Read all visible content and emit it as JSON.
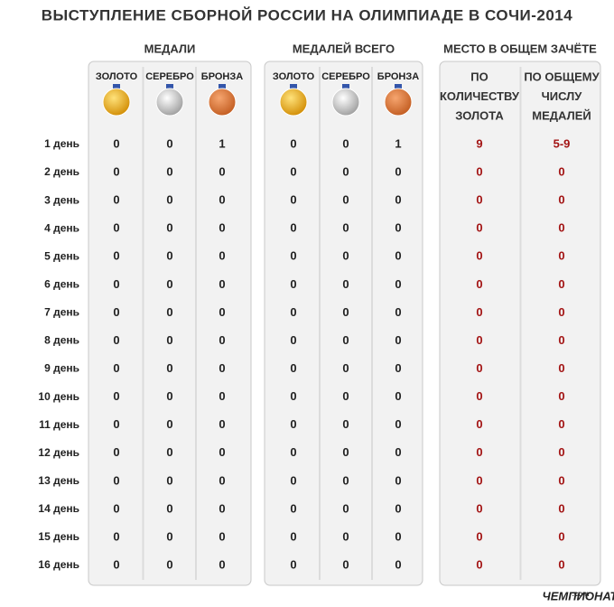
{
  "title": "ВЫСТУПЛЕНИЕ СБОРНОЙ РОССИИ НА ОЛИМПИАДЕ В СОЧИ-2014",
  "groups": [
    {
      "title": "МЕДАЛИ",
      "columns": [
        [
          "ЗОЛОТО"
        ],
        [
          "СЕРЕБРО"
        ],
        [
          "БРОНЗА"
        ]
      ]
    },
    {
      "title": "МЕДАЛЕЙ ВСЕГО",
      "columns": [
        [
          "ЗОЛОТО"
        ],
        [
          "СЕРЕБРО"
        ],
        [
          "БРОНЗА"
        ]
      ]
    },
    {
      "title": "МЕСТО В ОБЩЕМ ЗАЧЁТЕ",
      "columns": [
        [
          "ПО",
          "КОЛИЧЕСТВУ",
          "ЗОЛОТА"
        ],
        [
          "ПО ОБЩЕМУ",
          "ЧИСЛУ",
          "МЕДАЛЕЙ"
        ]
      ]
    }
  ],
  "rows": [
    {
      "label": "1 день",
      "cells": [
        0,
        0,
        1,
        0,
        0,
        1,
        9,
        "5-9"
      ]
    },
    {
      "label": "2 день",
      "cells": [
        0,
        0,
        0,
        0,
        0,
        0,
        0,
        0
      ]
    },
    {
      "label": "3 день",
      "cells": [
        0,
        0,
        0,
        0,
        0,
        0,
        0,
        0
      ]
    },
    {
      "label": "4 день",
      "cells": [
        0,
        0,
        0,
        0,
        0,
        0,
        0,
        0
      ]
    },
    {
      "label": "5 день",
      "cells": [
        0,
        0,
        0,
        0,
        0,
        0,
        0,
        0
      ]
    },
    {
      "label": "6 день",
      "cells": [
        0,
        0,
        0,
        0,
        0,
        0,
        0,
        0
      ]
    },
    {
      "label": "7 день",
      "cells": [
        0,
        0,
        0,
        0,
        0,
        0,
        0,
        0
      ]
    },
    {
      "label": "8 день",
      "cells": [
        0,
        0,
        0,
        0,
        0,
        0,
        0,
        0
      ]
    },
    {
      "label": "9 день",
      "cells": [
        0,
        0,
        0,
        0,
        0,
        0,
        0,
        0
      ]
    },
    {
      "label": "10 день",
      "cells": [
        0,
        0,
        0,
        0,
        0,
        0,
        0,
        0
      ]
    },
    {
      "label": "11 день",
      "cells": [
        0,
        0,
        0,
        0,
        0,
        0,
        0,
        0
      ]
    },
    {
      "label": "12 день",
      "cells": [
        0,
        0,
        0,
        0,
        0,
        0,
        0,
        0
      ]
    },
    {
      "label": "13 день",
      "cells": [
        0,
        0,
        0,
        0,
        0,
        0,
        0,
        0
      ]
    },
    {
      "label": "14 день",
      "cells": [
        0,
        0,
        0,
        0,
        0,
        0,
        0,
        0
      ]
    },
    {
      "label": "15 день",
      "cells": [
        0,
        0,
        0,
        0,
        0,
        0,
        0,
        0
      ]
    },
    {
      "label": "16 день",
      "cells": [
        0,
        0,
        0,
        0,
        0,
        0,
        0,
        0
      ]
    }
  ],
  "logo": {
    "name": "ЧЕМПИОНАТ",
    "suffix": ".com"
  }
}
